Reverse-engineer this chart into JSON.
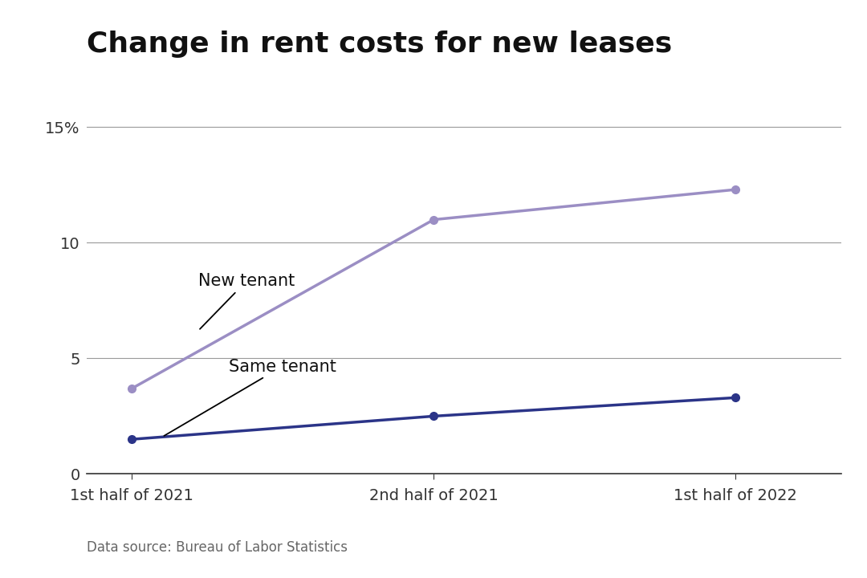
{
  "title": "Change in rent costs for new leases",
  "x_labels": [
    "1st half of 2021",
    "2nd half of 2021",
    "1st half of 2022"
  ],
  "new_tenant_values": [
    3.7,
    11.0,
    12.3
  ],
  "same_tenant_values": [
    1.5,
    2.5,
    3.3
  ],
  "new_tenant_color": "#9B8EC4",
  "same_tenant_color": "#2B3488",
  "ylim": [
    0,
    16
  ],
  "yticks": [
    0,
    5,
    10,
    15
  ],
  "ytick_labels": [
    "0",
    "5",
    "10",
    "15%"
  ],
  "annotation_new_tenant": "New tenant",
  "annotation_same_tenant": "Same tenant",
  "data_source": "Data source: Bureau of Labor Statistics",
  "background_color": "#FFFFFF",
  "title_fontsize": 26,
  "annotation_fontsize": 15,
  "axis_fontsize": 14,
  "source_fontsize": 12
}
